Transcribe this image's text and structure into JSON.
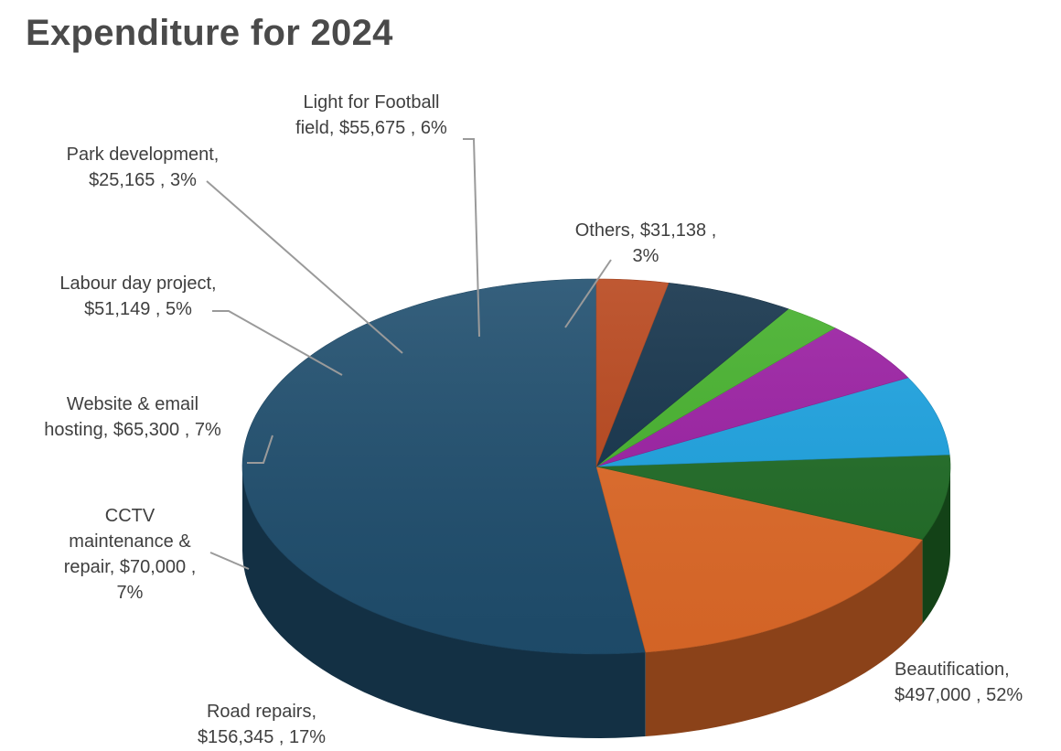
{
  "title": "Expenditure for 2024",
  "chart_data": {
    "type": "pie",
    "title": "Expenditure for 2024",
    "slices": [
      {
        "name": "Beautification",
        "value": 497000,
        "value_label": "$497,000",
        "percent": "52%",
        "color": "#1f4e6e",
        "label_lines": [
          "Beautification,",
          "$497,000 , 52%"
        ]
      },
      {
        "name": "Road repairs",
        "value": 156345,
        "value_label": "$156,345",
        "percent": "17%",
        "color": "#e06a28",
        "label_lines": [
          "Road repairs,",
          "$156,345 , 17%"
        ]
      },
      {
        "name": "CCTV maintenance & repair",
        "value": 70000,
        "value_label": "$70,000",
        "percent": "7%",
        "color": "#1f6b25",
        "label_lines": [
          "CCTV",
          "maintenance &",
          "repair, $70,000 ,",
          "7%"
        ]
      },
      {
        "name": "Website & email hosting",
        "value": 65300,
        "value_label": "$65,300",
        "percent": "7%",
        "color": "#1ca2e0",
        "label_lines": [
          "Website & email",
          "hosting, $65,300 , 7%"
        ]
      },
      {
        "name": "Labour day project",
        "value": 51149,
        "value_label": "$51,149",
        "percent": "5%",
        "color": "#9b1fa3",
        "label_lines": [
          "Labour day project,",
          "$51,149 , 5%"
        ]
      },
      {
        "name": "Park development",
        "value": 25165,
        "value_label": "$25,165",
        "percent": "3%",
        "color": "#45b12c",
        "label_lines": [
          "Park development,",
          "$25,165 , 3%"
        ]
      },
      {
        "name": "Light for Football field",
        "value": 55675,
        "value_label": "$55,675",
        "percent": "6%",
        "color": "#13324a",
        "label_lines": [
          "Light for Football",
          "field, $55,675 , 6%"
        ]
      },
      {
        "name": "Others",
        "value": 31138,
        "value_label": "$31,138",
        "percent": "3%",
        "color": "#b8461c",
        "label_lines": [
          "Others, $31,138 ,",
          "3%"
        ]
      }
    ],
    "legend": "none",
    "style": "3d-pie with leader lines"
  }
}
